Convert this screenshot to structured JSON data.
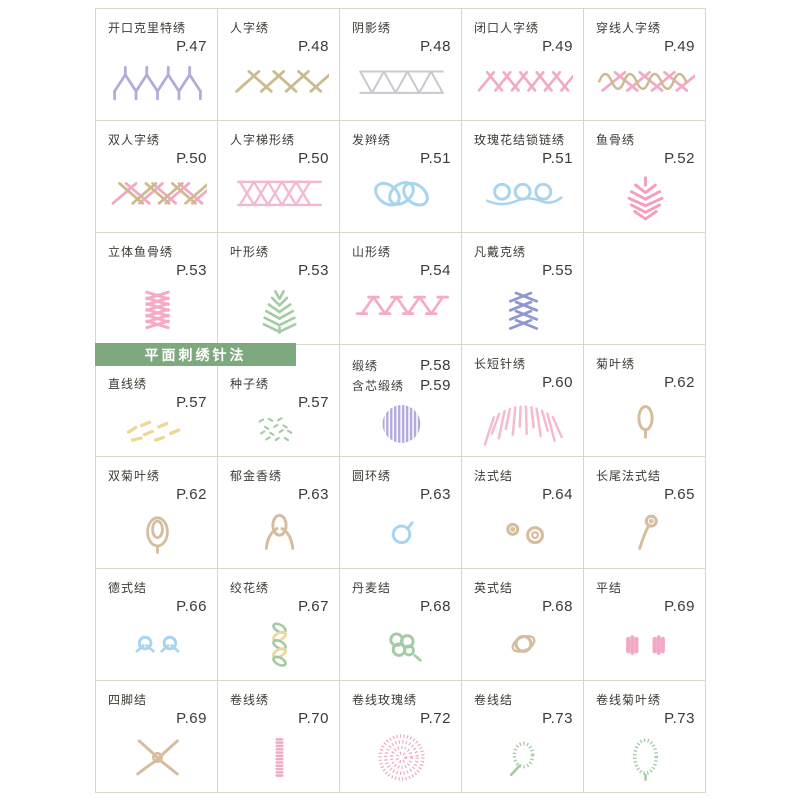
{
  "page": {
    "background": "#ffffff",
    "grid_line_color": "#ddd5c7",
    "text_color": "#3e3a34"
  },
  "section_banner": {
    "label": "平面刺绣针法",
    "background": "#7ea97e",
    "text_color": "#ffffff"
  },
  "grid": {
    "columns": 5,
    "rows": [
      {
        "cells": [
          {
            "name": "开口克里特绣",
            "page": "P.47",
            "icon": "open-cretan-stitch",
            "color": "#b5abdb"
          },
          {
            "name": "人字绣",
            "page": "P.48",
            "icon": "herringbone-stitch",
            "color": "#cbbc90"
          },
          {
            "name": "阴影绣",
            "page": "P.48",
            "icon": "shadow-stitch",
            "color": "#c8c8d2"
          },
          {
            "name": "闭口人字绣",
            "page": "P.49",
            "icon": "closed-herringbone-stitch",
            "color": "#f2a9c6"
          },
          {
            "name": "穿线人字绣",
            "page": "P.49",
            "icon": "threaded-herringbone-stitch",
            "color": "#f2a9c6",
            "color2": "#cbbc90"
          }
        ]
      },
      {
        "cells": [
          {
            "name": "双人字绣",
            "page": "P.50",
            "icon": "double-herringbone-stitch",
            "color": "#f2a9c6",
            "color2": "#cbbc90"
          },
          {
            "name": "人字梯形绣",
            "page": "P.50",
            "icon": "ladder-herringbone-stitch",
            "color": "#f5b7cf"
          },
          {
            "name": "发辫绣",
            "page": "P.51",
            "icon": "braid-stitch",
            "color": "#a9d4f0"
          },
          {
            "name": "玫瑰花结锁链绣",
            "page": "P.51",
            "icon": "rosette-chain-stitch",
            "color": "#a9d4f0"
          },
          {
            "name": "鱼骨绣",
            "page": "P.52",
            "icon": "fishbone-stitch",
            "color": "#f59fc0"
          }
        ]
      },
      {
        "cells": [
          {
            "name": "立体鱼骨绣",
            "page": "P.53",
            "icon": "raised-fishbone-stitch",
            "color": "#f5abc8"
          },
          {
            "name": "叶形绣",
            "page": "P.53",
            "icon": "leaf-stitch",
            "color": "#a5cba5"
          },
          {
            "name": "山形绣",
            "page": "P.54",
            "icon": "mountain-stitch",
            "color": "#f5abc8"
          },
          {
            "name": "凡戴克绣",
            "page": "P.55",
            "icon": "vandyke-stitch",
            "color": "#8f97d0"
          },
          {}
        ]
      },
      {
        "cells": [
          {
            "name": "直线绣",
            "page": "P.57",
            "icon": "straight-stitch",
            "color": "#ecd795",
            "under_banner": true
          },
          {
            "name": "种子绣",
            "page": "P.57",
            "icon": "seed-stitch",
            "color": "#a5cba5",
            "under_banner": true
          },
          {
            "entries": [
              {
                "name": "缎绣",
                "page": "P.58"
              },
              {
                "name": "含芯缎绣",
                "page": "P.59"
              }
            ],
            "icon": "satin-stitch",
            "color": "#b5abdb"
          },
          {
            "name": "长短针绣",
            "page": "P.60",
            "icon": "long-short-stitch",
            "color": "#f6bad0"
          },
          {
            "name": "菊叶绣",
            "page": "P.62",
            "icon": "lazy-daisy-stitch",
            "color": "#d5bd9e"
          }
        ]
      },
      {
        "cells": [
          {
            "name": "双菊叶绣",
            "page": "P.62",
            "icon": "double-lazy-daisy-stitch",
            "color": "#d5bd9e"
          },
          {
            "name": "郁金香绣",
            "page": "P.63",
            "icon": "tulip-stitch",
            "color": "#d5bd9e"
          },
          {
            "name": "圆环绣",
            "page": "P.63",
            "icon": "ring-stitch",
            "color": "#a9d4f0"
          },
          {
            "name": "法式结",
            "page": "P.64",
            "icon": "french-knot",
            "color": "#d5bd9e"
          },
          {
            "name": "长尾法式结",
            "page": "P.65",
            "icon": "long-tail-french-knot",
            "color": "#d5bd9e"
          }
        ]
      },
      {
        "cells": [
          {
            "name": "德式结",
            "page": "P.66",
            "icon": "german-knot",
            "color": "#a9d4f0"
          },
          {
            "name": "绞花绣",
            "page": "P.67",
            "icon": "twisted-chain-stitch",
            "color": "#a5cba5",
            "color2": "#ecd795"
          },
          {
            "name": "丹麦结",
            "page": "P.68",
            "icon": "danish-knot",
            "color": "#a5cba5"
          },
          {
            "name": "英式结",
            "page": "P.68",
            "icon": "english-knot",
            "color": "#d5bd9e"
          },
          {
            "name": "平结",
            "page": "P.69",
            "icon": "flat-knot",
            "color": "#f2a9c6"
          }
        ]
      },
      {
        "cells": [
          {
            "name": "四脚结",
            "page": "P.69",
            "icon": "four-legged-knot",
            "color": "#d5bd9e"
          },
          {
            "name": "卷线绣",
            "page": "P.70",
            "icon": "bullion-stitch",
            "color": "#f2a9c6"
          },
          {
            "name": "卷线玫瑰绣",
            "page": "P.72",
            "icon": "bullion-rose-stitch",
            "color": "#f2a9c6"
          },
          {
            "name": "卷线结",
            "page": "P.73",
            "icon": "bullion-knot",
            "color": "#a5cba5"
          },
          {
            "name": "卷线菊叶绣",
            "page": "P.73",
            "icon": "bullion-lazy-daisy-stitch",
            "color": "#a5cba5"
          }
        ]
      }
    ]
  }
}
